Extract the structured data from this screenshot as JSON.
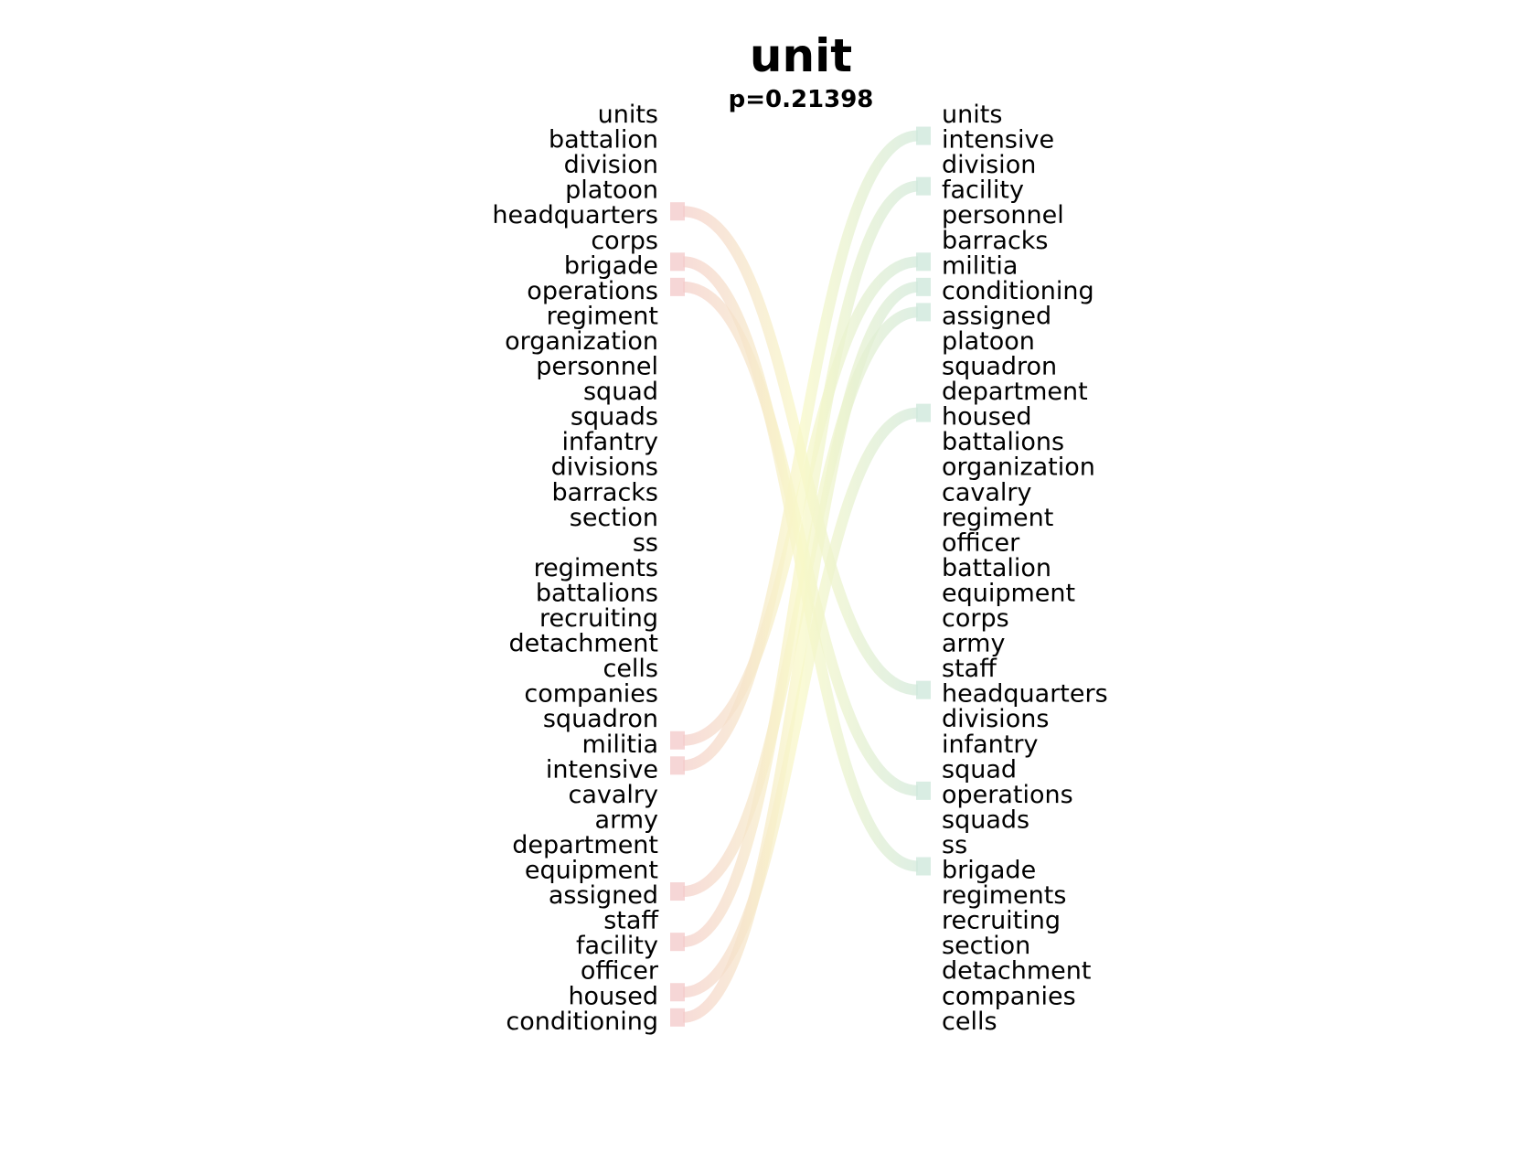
{
  "title": "unit",
  "subtitle": "p=0.21398",
  "colors": {
    "left_band": "#f4cccc",
    "right_band": "#cfe8dc",
    "mid_band": "#f8f8c8"
  },
  "left_words": [
    "units",
    "battalion",
    "division",
    "platoon",
    "headquarters",
    "corps",
    "brigade",
    "operations",
    "regiment",
    "organization",
    "personnel",
    "squad",
    "squads",
    "infantry",
    "divisions",
    "barracks",
    "section",
    "ss",
    "regiments",
    "battalions",
    "recruiting",
    "detachment",
    "cells",
    "companies",
    "squadron",
    "militia",
    "intensive",
    "cavalry",
    "army",
    "department",
    "equipment",
    "assigned",
    "staff",
    "facility",
    "officer",
    "housed",
    "conditioning"
  ],
  "right_words": [
    "units",
    "intensive",
    "division",
    "facility",
    "personnel",
    "barracks",
    "militia",
    "conditioning",
    "assigned",
    "platoon",
    "squadron",
    "department",
    "housed",
    "battalions",
    "organization",
    "cavalry",
    "regiment",
    "officer",
    "battalion",
    "equipment",
    "corps",
    "army",
    "staff",
    "headquarters",
    "divisions",
    "infantry",
    "squad",
    "operations",
    "squads",
    "ss",
    "brigade",
    "regiments",
    "recruiting",
    "section",
    "detachment",
    "companies",
    "cells"
  ],
  "links": [
    {
      "word": "headquarters",
      "from": 4,
      "to": 23
    },
    {
      "word": "brigade",
      "from": 6,
      "to": 30
    },
    {
      "word": "operations",
      "from": 7,
      "to": 27
    },
    {
      "word": "militia",
      "from": 25,
      "to": 6
    },
    {
      "word": "intensive",
      "from": 26,
      "to": 1
    },
    {
      "word": "assigned",
      "from": 31,
      "to": 8
    },
    {
      "word": "facility",
      "from": 33,
      "to": 3
    },
    {
      "word": "housed",
      "from": 35,
      "to": 12
    },
    {
      "word": "conditioning",
      "from": 36,
      "to": 7
    }
  ]
}
